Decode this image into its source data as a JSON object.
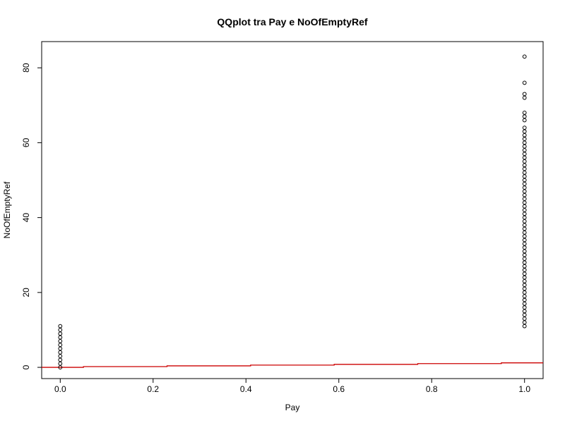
{
  "chart_data": {
    "type": "scatter",
    "title": "QQplot tra Pay e NoOfEmptyRef",
    "xlabel": "Pay",
    "ylabel": "NoOfEmptyRef",
    "xlim": [
      -0.04,
      1.04
    ],
    "ylim": [
      -3,
      87
    ],
    "x_ticks": [
      0.0,
      0.2,
      0.4,
      0.6,
      0.8,
      1.0
    ],
    "x_tick_labels": [
      "0.0",
      "0.2",
      "0.4",
      "0.6",
      "0.8",
      "1.0"
    ],
    "y_ticks": [
      0,
      20,
      40,
      60,
      80
    ],
    "y_tick_labels": [
      "0",
      "20",
      "40",
      "60",
      "80"
    ],
    "grid": false,
    "series": [
      {
        "color": "#000000",
        "marker": "open-circle",
        "points": [
          [
            0,
            0
          ],
          [
            0,
            1
          ],
          [
            0,
            2
          ],
          [
            0,
            3
          ],
          [
            0,
            4
          ],
          [
            0,
            5
          ],
          [
            0,
            6
          ],
          [
            0,
            7
          ],
          [
            0,
            8
          ],
          [
            0,
            9
          ],
          [
            0,
            10
          ],
          [
            0,
            11
          ],
          [
            1,
            11
          ],
          [
            1,
            12
          ],
          [
            1,
            13
          ],
          [
            1,
            14
          ],
          [
            1,
            15
          ],
          [
            1,
            16
          ],
          [
            1,
            17
          ],
          [
            1,
            18
          ],
          [
            1,
            19
          ],
          [
            1,
            20
          ],
          [
            1,
            21
          ],
          [
            1,
            22
          ],
          [
            1,
            23
          ],
          [
            1,
            24
          ],
          [
            1,
            25
          ],
          [
            1,
            26
          ],
          [
            1,
            27
          ],
          [
            1,
            28
          ],
          [
            1,
            29
          ],
          [
            1,
            30
          ],
          [
            1,
            31
          ],
          [
            1,
            32
          ],
          [
            1,
            33
          ],
          [
            1,
            34
          ],
          [
            1,
            35
          ],
          [
            1,
            36
          ],
          [
            1,
            37
          ],
          [
            1,
            38
          ],
          [
            1,
            39
          ],
          [
            1,
            40
          ],
          [
            1,
            41
          ],
          [
            1,
            42
          ],
          [
            1,
            43
          ],
          [
            1,
            44
          ],
          [
            1,
            45
          ],
          [
            1,
            46
          ],
          [
            1,
            47
          ],
          [
            1,
            48
          ],
          [
            1,
            49
          ],
          [
            1,
            50
          ],
          [
            1,
            51
          ],
          [
            1,
            52
          ],
          [
            1,
            53
          ],
          [
            1,
            54
          ],
          [
            1,
            55
          ],
          [
            1,
            56
          ],
          [
            1,
            57
          ],
          [
            1,
            58
          ],
          [
            1,
            59
          ],
          [
            1,
            60
          ],
          [
            1,
            61
          ],
          [
            1,
            62
          ],
          [
            1,
            63
          ],
          [
            1,
            64
          ],
          [
            1,
            66
          ],
          [
            1,
            67
          ],
          [
            1,
            68
          ],
          [
            1,
            72
          ],
          [
            1,
            73
          ],
          [
            1,
            76
          ],
          [
            1,
            83
          ]
        ]
      }
    ],
    "reference_line": {
      "color": "#cc0000",
      "x": [
        -0.04,
        0.0,
        0.05,
        0.05,
        0.23,
        0.23,
        0.41,
        0.41,
        0.59,
        0.59,
        0.77,
        0.77,
        0.95,
        0.95,
        1.04
      ],
      "y": [
        0.0,
        0.0,
        0.0,
        0.2,
        0.2,
        0.4,
        0.4,
        0.6,
        0.6,
        0.8,
        0.8,
        1.0,
        1.0,
        1.2,
        1.2
      ]
    }
  }
}
